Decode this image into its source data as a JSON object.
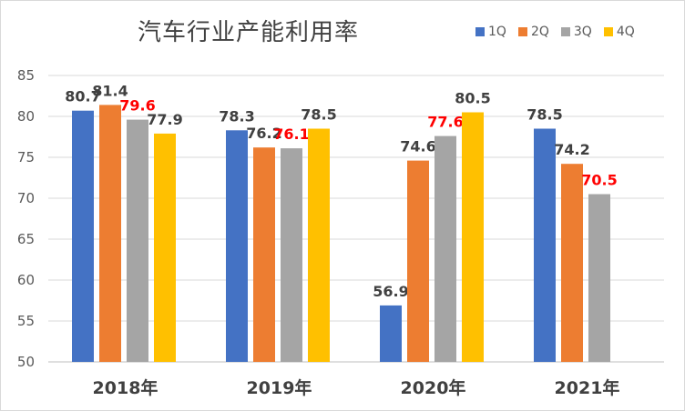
{
  "chart_data": {
    "type": "bar",
    "title": "汽车行业产能利用率",
    "xlabel": "",
    "ylabel": "",
    "ylim": [
      50,
      85
    ],
    "yticks": [
      "50",
      "55",
      "60",
      "65",
      "70",
      "75",
      "80",
      "85"
    ],
    "grid": true,
    "legend_position": "top-right",
    "categories": [
      "2018年",
      "2019年",
      "2020年",
      "2021年"
    ],
    "series": [
      {
        "name": "1Q",
        "color": "#4472c4",
        "values": [
          80.7,
          78.3,
          56.9,
          78.5
        ],
        "labels": [
          "80.7",
          "78.3",
          "56.9",
          "78.5"
        ],
        "label_colors": [
          "#404040",
          "#404040",
          "#404040",
          "#404040"
        ]
      },
      {
        "name": "2Q",
        "color": "#ed7d31",
        "values": [
          81.4,
          76.2,
          74.6,
          74.2
        ],
        "labels": [
          "81.4",
          "76.2",
          "74.6",
          "74.2"
        ],
        "label_colors": [
          "#404040",
          "#404040",
          "#404040",
          "#404040"
        ]
      },
      {
        "name": "3Q",
        "color": "#a5a5a5",
        "values": [
          79.6,
          76.1,
          77.6,
          70.5
        ],
        "labels": [
          "79.6",
          "76.1",
          "77.6",
          "70.5"
        ],
        "label_colors": [
          "#ff0000",
          "#ff0000",
          "#ff0000",
          "#ff0000"
        ]
      },
      {
        "name": "4Q",
        "color": "#ffc000",
        "values": [
          77.9,
          78.5,
          80.5,
          null
        ],
        "labels": [
          "77.9",
          "78.5",
          "80.5",
          ""
        ],
        "label_colors": [
          "#404040",
          "#404040",
          "#404040",
          "#404040"
        ]
      }
    ]
  }
}
